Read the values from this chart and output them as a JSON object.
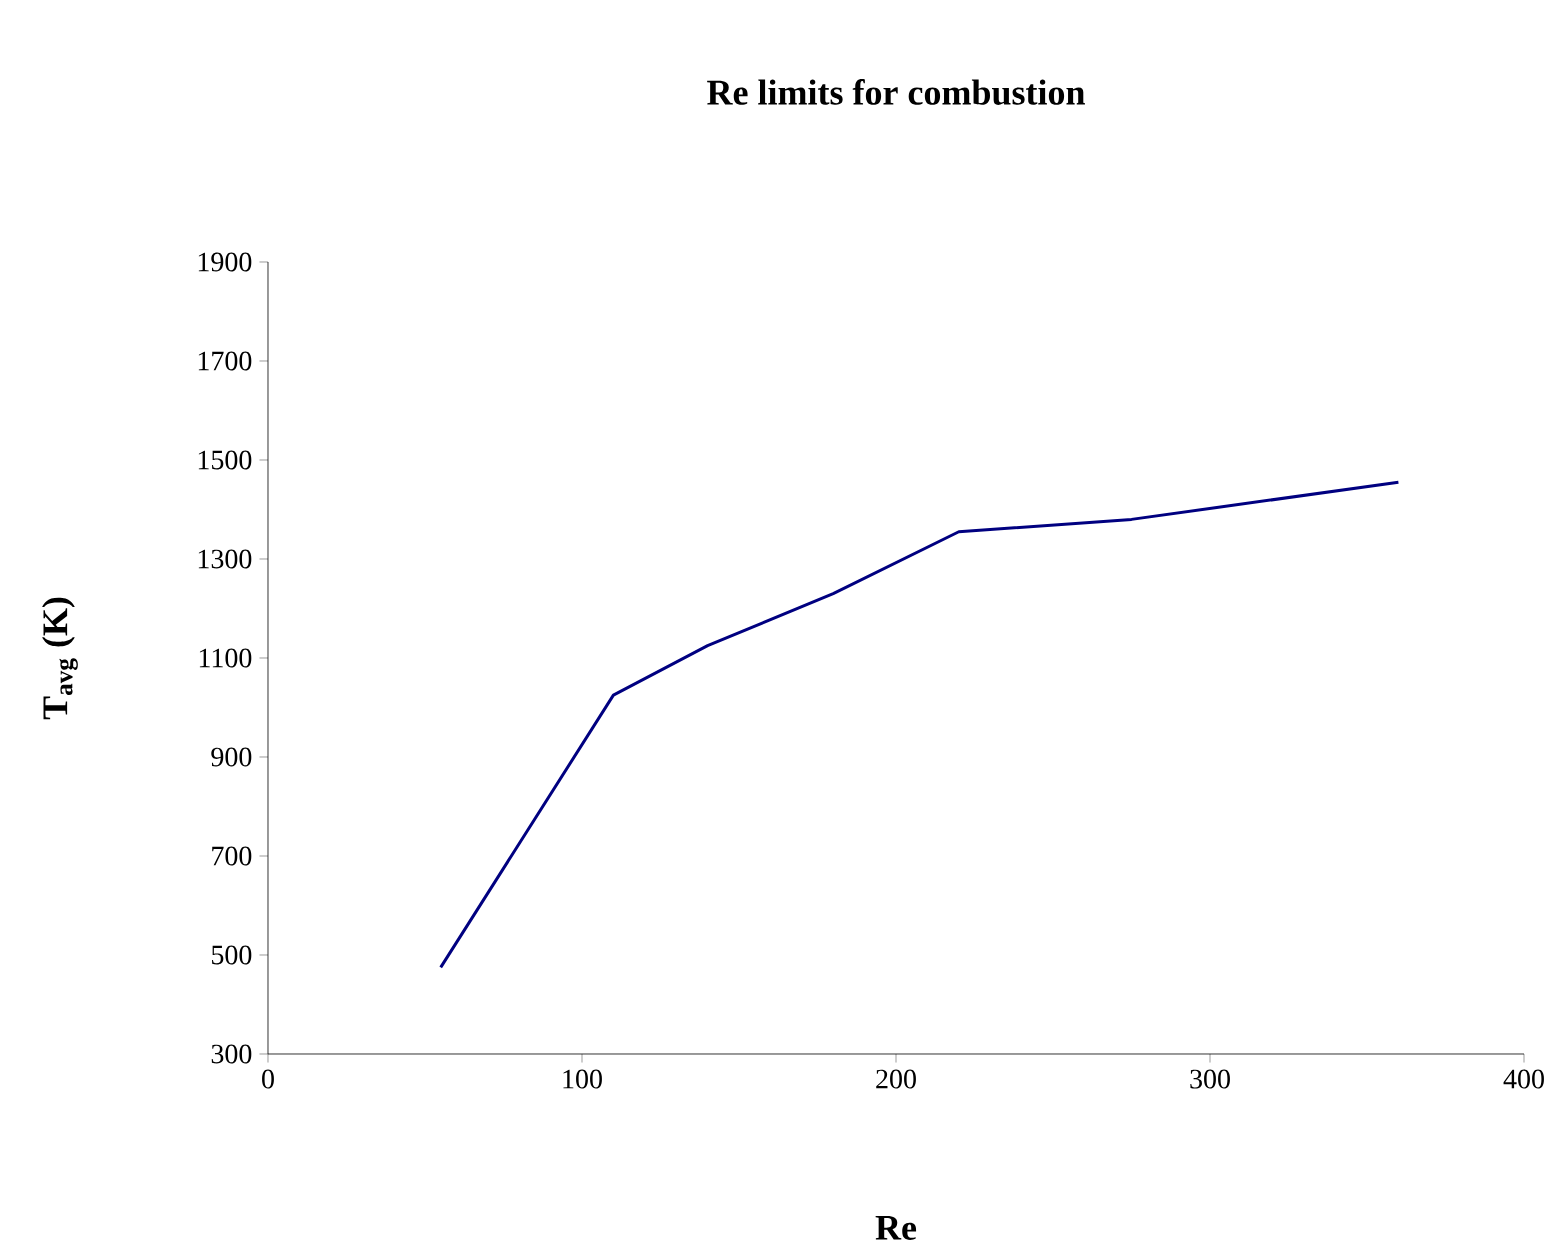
{
  "chart_data": {
    "type": "line",
    "title": "Re limits for combustion",
    "xlabel": "Re",
    "ylabel": "T$_{avg}$ (K)",
    "x": [
      55,
      110,
      140,
      180,
      220,
      275,
      360
    ],
    "series": [
      {
        "color": "#000080",
        "values": [
          475,
          1025,
          1125,
          1230,
          1355,
          1380,
          1455
        ]
      }
    ],
    "xlim": [
      0,
      400
    ],
    "xticks": [
      0,
      100,
      200,
      300,
      400
    ],
    "ylim": [
      300,
      1900
    ],
    "yticks": [
      300,
      500,
      700,
      900,
      1100,
      1300,
      1500,
      1700,
      1900
    ],
    "grid": false,
    "marker": "none",
    "line_style": "solid"
  }
}
